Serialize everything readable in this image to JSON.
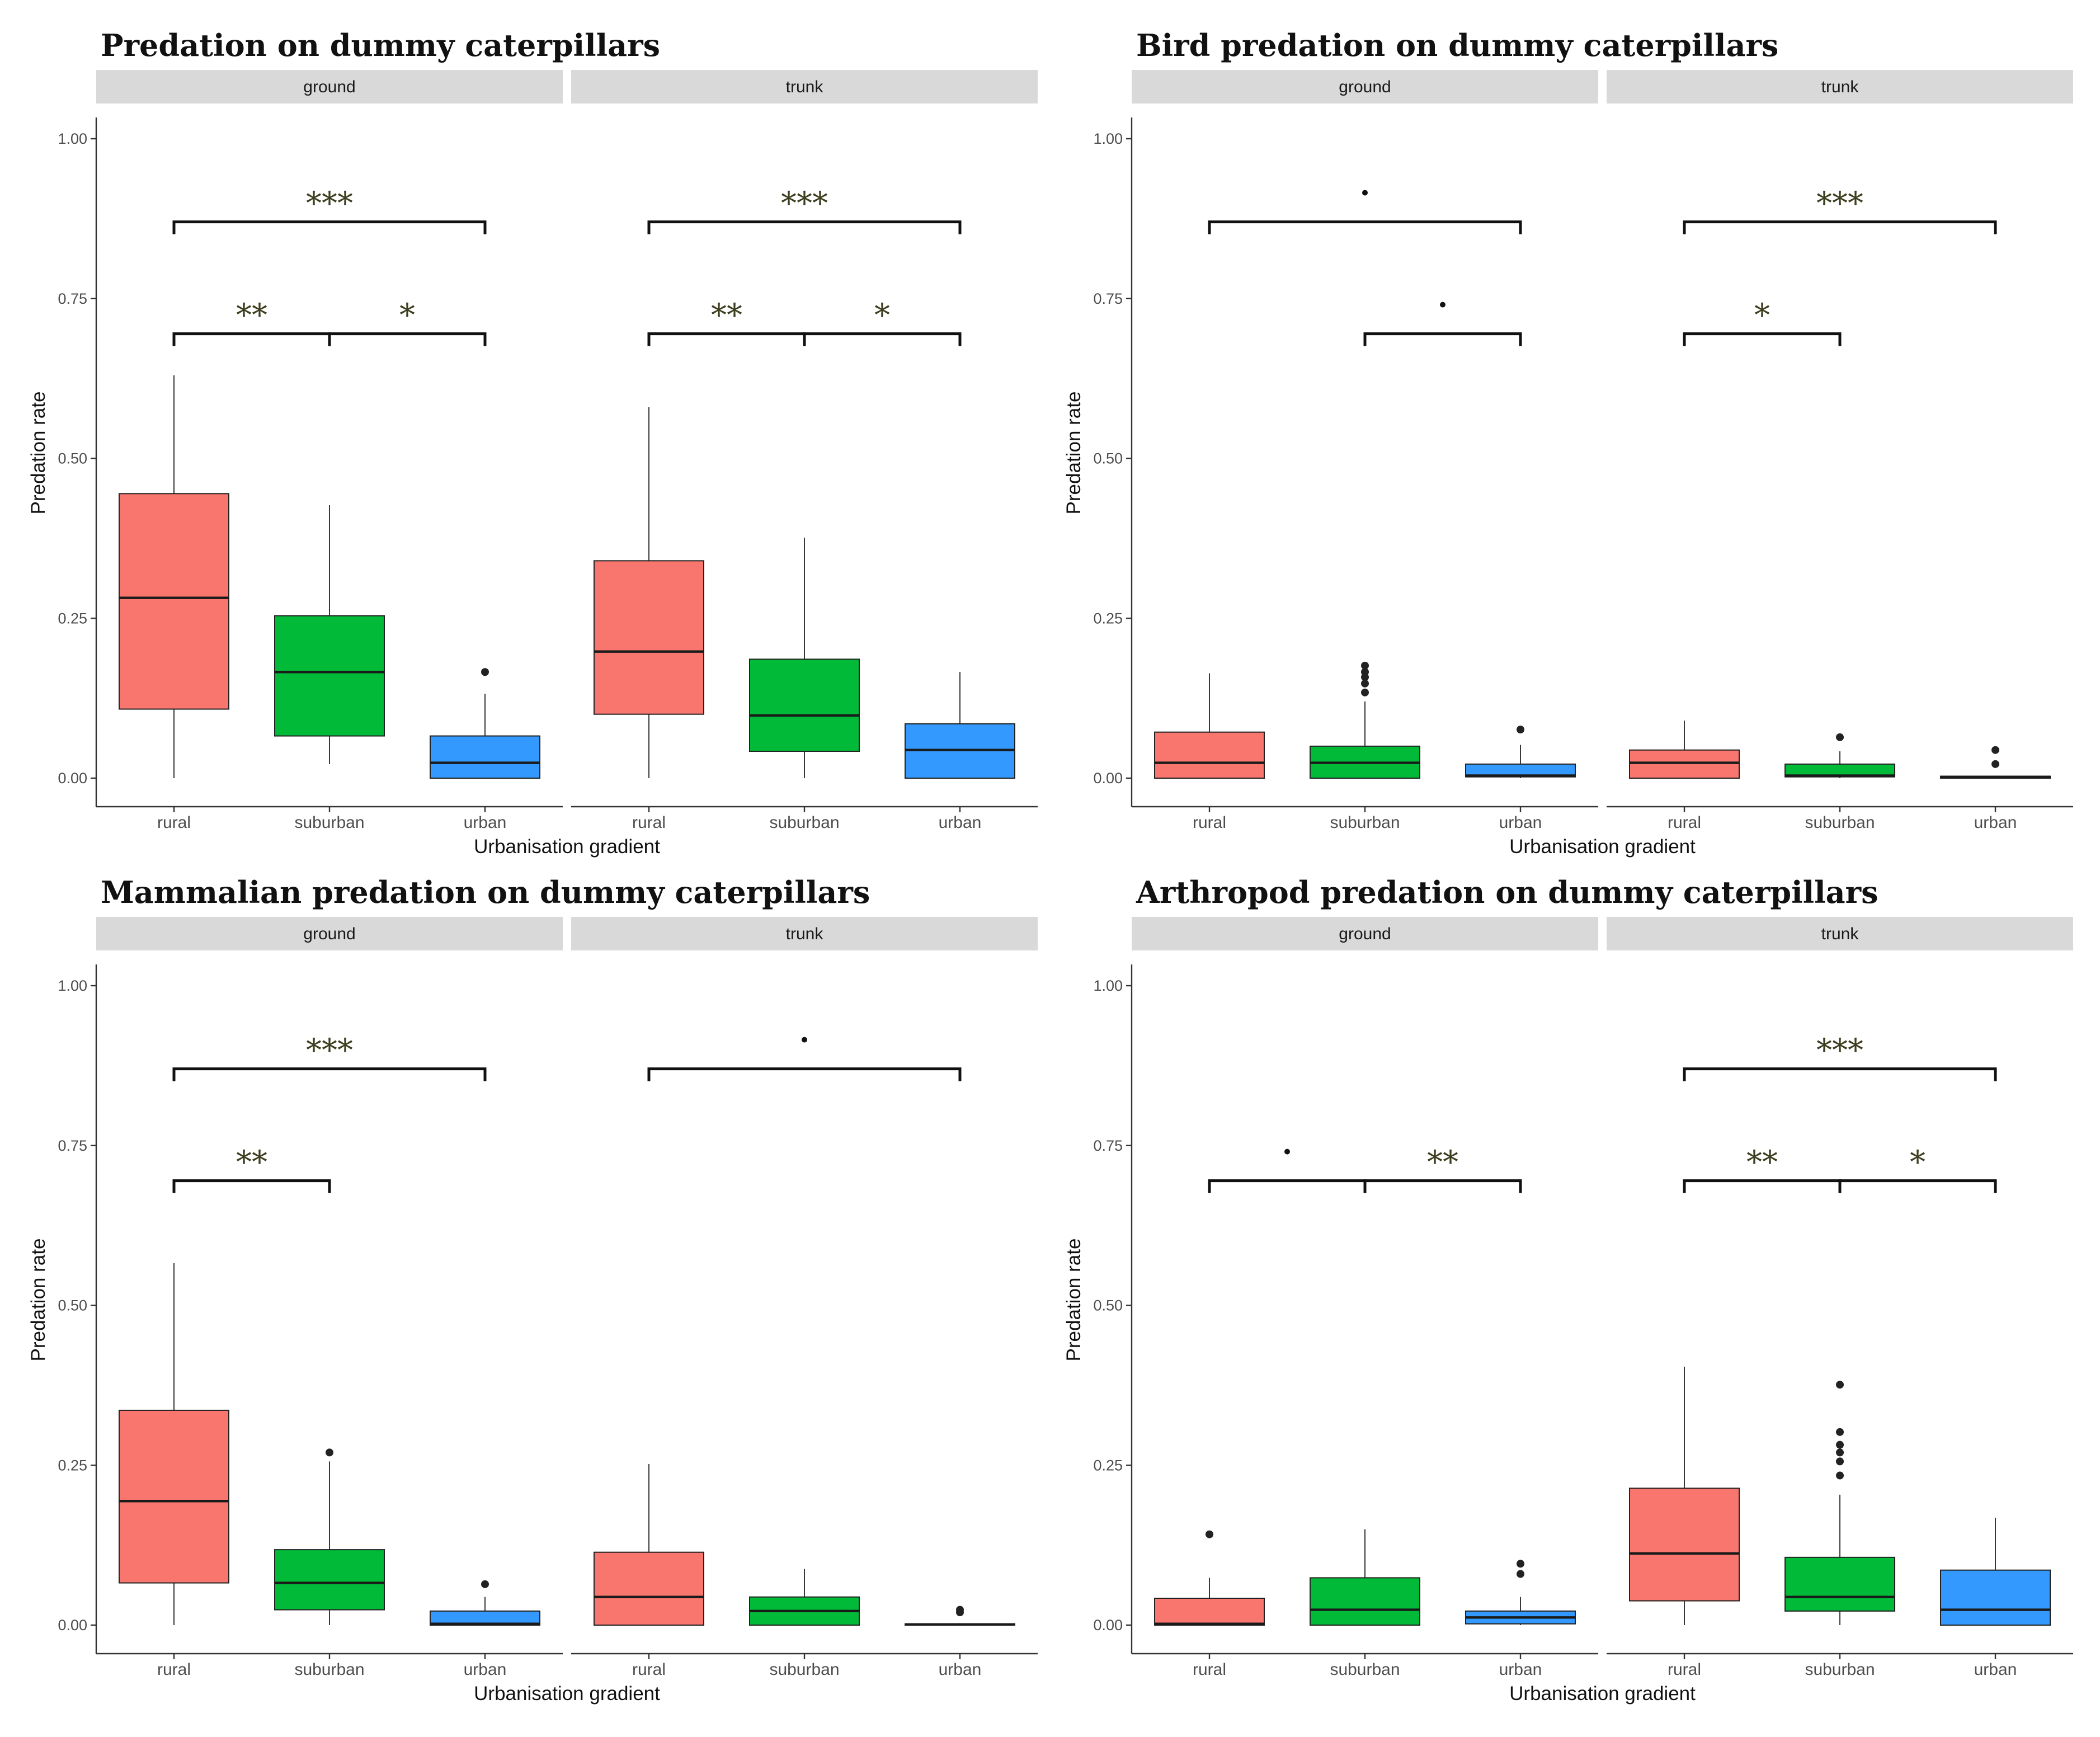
{
  "colors": {
    "rural": "#F8766D",
    "suburban": "#00BA38",
    "urban": "#3399FF",
    "strip_bg": "#D9D9D9",
    "significance_text": "#3d3d1f",
    "axis_line": "#333333",
    "box_line": "#222222"
  },
  "chart_data": [
    {
      "type": "box",
      "title": "Predation on dummy caterpillars",
      "xlabel": "Urbanisation gradient",
      "ylabel": "Predation rate",
      "ylim": [
        0,
        1.04
      ],
      "yticks": [
        "0.00",
        "0.25",
        "0.50",
        "0.75",
        "1.00"
      ],
      "grid": false,
      "legend": "none",
      "panels": [
        {
          "strip": "ground",
          "categories": [
            "rural",
            "suburban",
            "urban"
          ],
          "boxes": [
            {
              "group": "rural",
              "min": 0.0,
              "q1": 0.108,
              "median": 0.282,
              "q3": 0.445,
              "max": 0.63,
              "outliers": []
            },
            {
              "group": "suburban",
              "min": 0.022,
              "q1": 0.066,
              "median": 0.166,
              "q3": 0.254,
              "max": 0.427,
              "outliers": []
            },
            {
              "group": "urban",
              "min": 0.0,
              "q1": 0.0,
              "median": 0.024,
              "q3": 0.066,
              "max": 0.132,
              "outliers": [
                0.166
              ]
            }
          ],
          "brackets": [
            {
              "from": 0,
              "to": 2,
              "y": 0.87,
              "label": "***"
            },
            {
              "from": 0,
              "to": 1,
              "y": 0.695,
              "label": "**"
            },
            {
              "from": 1,
              "to": 2,
              "y": 0.695,
              "label": "*"
            }
          ]
        },
        {
          "strip": "trunk",
          "categories": [
            "rural",
            "suburban",
            "urban"
          ],
          "boxes": [
            {
              "group": "rural",
              "min": 0.0,
              "q1": 0.1,
              "median": 0.198,
              "q3": 0.34,
              "max": 0.58,
              "outliers": []
            },
            {
              "group": "suburban",
              "min": 0.0,
              "q1": 0.042,
              "median": 0.098,
              "q3": 0.186,
              "max": 0.376,
              "outliers": []
            },
            {
              "group": "urban",
              "min": 0.0,
              "q1": 0.0,
              "median": 0.044,
              "q3": 0.085,
              "max": 0.166,
              "outliers": []
            }
          ],
          "brackets": [
            {
              "from": 0,
              "to": 2,
              "y": 0.87,
              "label": "***"
            },
            {
              "from": 0,
              "to": 1,
              "y": 0.695,
              "label": "**"
            },
            {
              "from": 1,
              "to": 2,
              "y": 0.695,
              "label": "*"
            }
          ]
        }
      ]
    },
    {
      "type": "box",
      "title": "Bird predation on dummy caterpillars",
      "xlabel": "Urbanisation gradient",
      "ylabel": "Predation rate",
      "ylim": [
        0,
        1.04
      ],
      "yticks": [
        "0.00",
        "0.25",
        "0.50",
        "0.75",
        "1.00"
      ],
      "grid": false,
      "legend": "none",
      "panels": [
        {
          "strip": "ground",
          "categories": [
            "rural",
            "suburban",
            "urban"
          ],
          "boxes": [
            {
              "group": "rural",
              "min": 0.0,
              "q1": 0.0,
              "median": 0.024,
              "q3": 0.072,
              "max": 0.164,
              "outliers": []
            },
            {
              "group": "suburban",
              "min": 0.0,
              "q1": 0.0,
              "median": 0.024,
              "q3": 0.05,
              "max": 0.12,
              "outliers": [
                0.134,
                0.148,
                0.158,
                0.166,
                0.176
              ]
            },
            {
              "group": "urban",
              "min": 0.0,
              "q1": 0.002,
              "median": 0.004,
              "q3": 0.022,
              "max": 0.052,
              "outliers": [
                0.076
              ]
            }
          ],
          "brackets": [
            {
              "from": 0,
              "to": 2,
              "y": 0.87,
              "label": "·"
            },
            {
              "from": 1,
              "to": 2,
              "y": 0.695,
              "label": "·"
            }
          ]
        },
        {
          "strip": "trunk",
          "categories": [
            "rural",
            "suburban",
            "urban"
          ],
          "boxes": [
            {
              "group": "rural",
              "min": 0.0,
              "q1": 0.0,
              "median": 0.024,
              "q3": 0.044,
              "max": 0.09,
              "outliers": []
            },
            {
              "group": "suburban",
              "min": 0.0,
              "q1": 0.002,
              "median": 0.004,
              "q3": 0.022,
              "max": 0.042,
              "outliers": [
                0.064
              ]
            },
            {
              "group": "urban",
              "min": 0.0,
              "q1": 0.0,
              "median": 0.002,
              "q3": 0.003,
              "max": 0.004,
              "outliers": [
                0.022,
                0.044
              ]
            }
          ],
          "brackets": [
            {
              "from": 0,
              "to": 2,
              "y": 0.87,
              "label": "***"
            },
            {
              "from": 0,
              "to": 1,
              "y": 0.695,
              "label": "*"
            }
          ]
        }
      ]
    },
    {
      "type": "box",
      "title": "Mammalian predation on dummy caterpillars",
      "xlabel": "Urbanisation gradient",
      "ylabel": "Predation rate",
      "ylim": [
        0,
        1.04
      ],
      "yticks": [
        "0.00",
        "0.25",
        "0.50",
        "0.75",
        "1.00"
      ],
      "grid": false,
      "legend": "none",
      "panels": [
        {
          "strip": "ground",
          "categories": [
            "rural",
            "suburban",
            "urban"
          ],
          "boxes": [
            {
              "group": "rural",
              "min": 0.0,
              "q1": 0.066,
              "median": 0.194,
              "q3": 0.336,
              "max": 0.566,
              "outliers": []
            },
            {
              "group": "suburban",
              "min": 0.0,
              "q1": 0.024,
              "median": 0.066,
              "q3": 0.118,
              "max": 0.256,
              "outliers": [
                0.27
              ]
            },
            {
              "group": "urban",
              "min": 0.0,
              "q1": 0.0,
              "median": 0.002,
              "q3": 0.022,
              "max": 0.044,
              "outliers": [
                0.064
              ]
            }
          ],
          "brackets": [
            {
              "from": 0,
              "to": 2,
              "y": 0.87,
              "label": "***"
            },
            {
              "from": 0,
              "to": 1,
              "y": 0.695,
              "label": "**"
            }
          ]
        },
        {
          "strip": "trunk",
          "categories": [
            "rural",
            "suburban",
            "urban"
          ],
          "boxes": [
            {
              "group": "rural",
              "min": 0.0,
              "q1": 0.0,
              "median": 0.044,
              "q3": 0.114,
              "max": 0.252,
              "outliers": []
            },
            {
              "group": "suburban",
              "min": 0.0,
              "q1": 0.0,
              "median": 0.022,
              "q3": 0.044,
              "max": 0.088,
              "outliers": []
            },
            {
              "group": "urban",
              "min": 0.0,
              "q1": 0.0,
              "median": 0.001,
              "q3": 0.002,
              "max": 0.003,
              "outliers": [
                0.02,
                0.024
              ]
            }
          ],
          "brackets": [
            {
              "from": 0,
              "to": 2,
              "y": 0.87,
              "label": "·"
            }
          ]
        }
      ]
    },
    {
      "type": "box",
      "title": "Arthropod predation on dummy caterpillars",
      "xlabel": "Urbanisation gradient",
      "ylabel": "Predation rate",
      "ylim": [
        0,
        1.04
      ],
      "yticks": [
        "0.00",
        "0.25",
        "0.50",
        "0.75",
        "1.00"
      ],
      "grid": false,
      "legend": "none",
      "panels": [
        {
          "strip": "ground",
          "categories": [
            "rural",
            "suburban",
            "urban"
          ],
          "boxes": [
            {
              "group": "rural",
              "min": 0.0,
              "q1": 0.0,
              "median": 0.002,
              "q3": 0.042,
              "max": 0.074,
              "outliers": [
                0.142
              ]
            },
            {
              "group": "suburban",
              "min": 0.0,
              "q1": 0.0,
              "median": 0.024,
              "q3": 0.074,
              "max": 0.15,
              "outliers": []
            },
            {
              "group": "urban",
              "min": 0.0,
              "q1": 0.002,
              "median": 0.012,
              "q3": 0.022,
              "max": 0.044,
              "outliers": [
                0.08,
                0.096
              ]
            }
          ],
          "brackets": [
            {
              "from": 0,
              "to": 1,
              "y": 0.695,
              "label": "·"
            },
            {
              "from": 1,
              "to": 2,
              "y": 0.695,
              "label": "**"
            }
          ]
        },
        {
          "strip": "trunk",
          "categories": [
            "rural",
            "suburban",
            "urban"
          ],
          "boxes": [
            {
              "group": "rural",
              "min": 0.0,
              "q1": 0.038,
              "median": 0.112,
              "q3": 0.214,
              "max": 0.404,
              "outliers": []
            },
            {
              "group": "suburban",
              "min": 0.0,
              "q1": 0.022,
              "median": 0.044,
              "q3": 0.106,
              "max": 0.204,
              "outliers": [
                0.234,
                0.256,
                0.27,
                0.282,
                0.302,
                0.376
              ]
            },
            {
              "group": "urban",
              "min": 0.0,
              "q1": 0.0,
              "median": 0.024,
              "q3": 0.086,
              "max": 0.168,
              "outliers": []
            }
          ],
          "brackets": [
            {
              "from": 0,
              "to": 2,
              "y": 0.87,
              "label": "***"
            },
            {
              "from": 0,
              "to": 1,
              "y": 0.695,
              "label": "**"
            },
            {
              "from": 1,
              "to": 2,
              "y": 0.695,
              "label": "*"
            }
          ]
        }
      ]
    }
  ]
}
